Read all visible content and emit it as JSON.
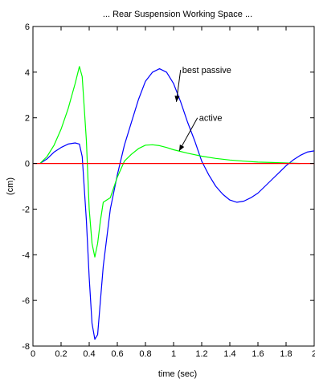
{
  "chart_data": {
    "type": "line",
    "title": "... Rear Suspension Working Space ...",
    "xlabel": "time (sec)",
    "ylabel": "(cm)",
    "xlim": [
      0,
      2
    ],
    "ylim": [
      -8,
      6
    ],
    "xticks": [
      "0",
      "0.2",
      "0.4",
      "0.6",
      "0.8",
      "1",
      "1.2",
      "1.4",
      "1.6",
      "1.8",
      "2"
    ],
    "yticks": [
      "6",
      "4",
      "2",
      "0",
      "-2",
      "-4",
      "-6",
      "-8"
    ],
    "grid": false,
    "series": [
      {
        "name": "best passive",
        "color": "#0000ff",
        "x": [
          0.05,
          0.1,
          0.15,
          0.2,
          0.25,
          0.3,
          0.33,
          0.35,
          0.38,
          0.4,
          0.42,
          0.44,
          0.46,
          0.48,
          0.5,
          0.55,
          0.6,
          0.65,
          0.7,
          0.75,
          0.8,
          0.85,
          0.9,
          0.95,
          1.0,
          1.05,
          1.1,
          1.15,
          1.2,
          1.25,
          1.3,
          1.35,
          1.4,
          1.45,
          1.5,
          1.55,
          1.6,
          1.65,
          1.7,
          1.75,
          1.8,
          1.85,
          1.9,
          1.95,
          2.0
        ],
        "y": [
          0.0,
          0.2,
          0.5,
          0.7,
          0.85,
          0.9,
          0.85,
          0.3,
          -2.5,
          -5.0,
          -7.0,
          -7.7,
          -7.5,
          -6.0,
          -4.5,
          -2.0,
          -0.5,
          0.8,
          1.8,
          2.8,
          3.6,
          4.0,
          4.15,
          4.0,
          3.5,
          2.7,
          1.8,
          1.0,
          0.1,
          -0.5,
          -1.0,
          -1.35,
          -1.6,
          -1.7,
          -1.65,
          -1.5,
          -1.3,
          -1.0,
          -0.7,
          -0.4,
          -0.1,
          0.15,
          0.35,
          0.5,
          0.55
        ]
      },
      {
        "name": "active",
        "color": "#00ff00",
        "x": [
          0.05,
          0.1,
          0.15,
          0.2,
          0.25,
          0.3,
          0.33,
          0.35,
          0.38,
          0.4,
          0.42,
          0.44,
          0.46,
          0.48,
          0.5,
          0.55,
          0.6,
          0.65,
          0.7,
          0.75,
          0.8,
          0.85,
          0.9,
          0.95,
          1.0,
          1.1,
          1.2,
          1.3,
          1.4,
          1.5,
          1.6,
          1.7,
          1.8,
          1.9
        ],
        "y": [
          0.0,
          0.3,
          0.8,
          1.5,
          2.4,
          3.5,
          4.25,
          3.8,
          1.0,
          -2.0,
          -3.5,
          -4.1,
          -3.5,
          -2.5,
          -1.7,
          -1.5,
          -0.6,
          0.1,
          0.4,
          0.65,
          0.8,
          0.82,
          0.78,
          0.7,
          0.6,
          0.45,
          0.32,
          0.22,
          0.15,
          0.1,
          0.06,
          0.04,
          0.02,
          0.0
        ]
      },
      {
        "name": "",
        "color": "#ff0000",
        "x": [
          0,
          2
        ],
        "y": [
          0,
          0
        ]
      }
    ],
    "annotations": [
      {
        "text": "best passive",
        "text_x": 1.05,
        "text_y": 4.1,
        "arrow_x": 1.02,
        "arrow_y": 2.7
      },
      {
        "text": "active",
        "text_x": 1.17,
        "text_y": 2.0,
        "arrow_x": 1.04,
        "arrow_y": 0.55
      }
    ]
  }
}
